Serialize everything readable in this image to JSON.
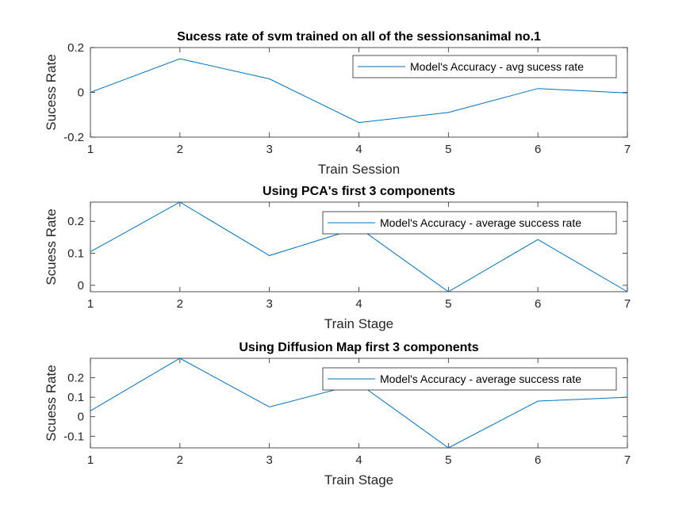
{
  "chart_data": [
    {
      "type": "line",
      "title": "Sucess rate of svm trained on all of the sessionsanimal no.1",
      "xlabel": "Train Session",
      "ylabel": "Sucess Rate",
      "x": [
        1,
        2,
        3,
        4,
        5,
        6,
        7
      ],
      "xlim": [
        1,
        7
      ],
      "xticks": [
        1,
        2,
        3,
        4,
        5,
        6,
        7
      ],
      "ylim": [
        -0.2,
        0.2
      ],
      "yticks": [
        -0.2,
        0,
        0.2
      ],
      "ytick_labels": [
        "-0.2",
        "0",
        "0.2"
      ],
      "grid": false,
      "legend_position": "top-right",
      "series": [
        {
          "name": "Model's Accuracy - avg sucess rate",
          "values": [
            0.0,
            0.15,
            0.06,
            -0.135,
            -0.09,
            0.017,
            -0.003
          ]
        }
      ]
    },
    {
      "type": "line",
      "title": "Using PCA's first 3 components",
      "xlabel": "Train Stage",
      "ylabel": "Scuess Rate",
      "x": [
        1,
        2,
        3,
        4,
        5,
        6,
        7
      ],
      "xlim": [
        1,
        7
      ],
      "xticks": [
        1,
        2,
        3,
        4,
        5,
        6,
        7
      ],
      "ylim": [
        -0.02,
        0.26
      ],
      "yticks": [
        0,
        0.1,
        0.2
      ],
      "ytick_labels": [
        "0",
        "0.1",
        "0.2"
      ],
      "grid": false,
      "legend_position": "top-right",
      "series": [
        {
          "name": "Model's Accuracy - average success rate",
          "values": [
            0.105,
            0.26,
            0.093,
            0.18,
            -0.02,
            0.143,
            -0.02
          ]
        }
      ]
    },
    {
      "type": "line",
      "title": "Using Diffusion Map first 3 components",
      "xlabel": "Train Stage",
      "ylabel": "Scuess Rate",
      "x": [
        1,
        2,
        3,
        4,
        5,
        6,
        7
      ],
      "xlim": [
        1,
        7
      ],
      "xticks": [
        1,
        2,
        3,
        4,
        5,
        6,
        7
      ],
      "ylim": [
        -0.16,
        0.3
      ],
      "yticks": [
        -0.1,
        0,
        0.1,
        0.2
      ],
      "ytick_labels": [
        "-0.1",
        "0",
        "0.1",
        "0.2"
      ],
      "grid": false,
      "legend_position": "top-right",
      "series": [
        {
          "name": "Model's Accuracy - average success rate",
          "values": [
            0.03,
            0.3,
            0.05,
            0.17,
            -0.16,
            0.08,
            0.1
          ]
        }
      ]
    }
  ],
  "colors": {
    "line": "#0072BD",
    "axis": "#262626",
    "background": "#ffffff"
  }
}
